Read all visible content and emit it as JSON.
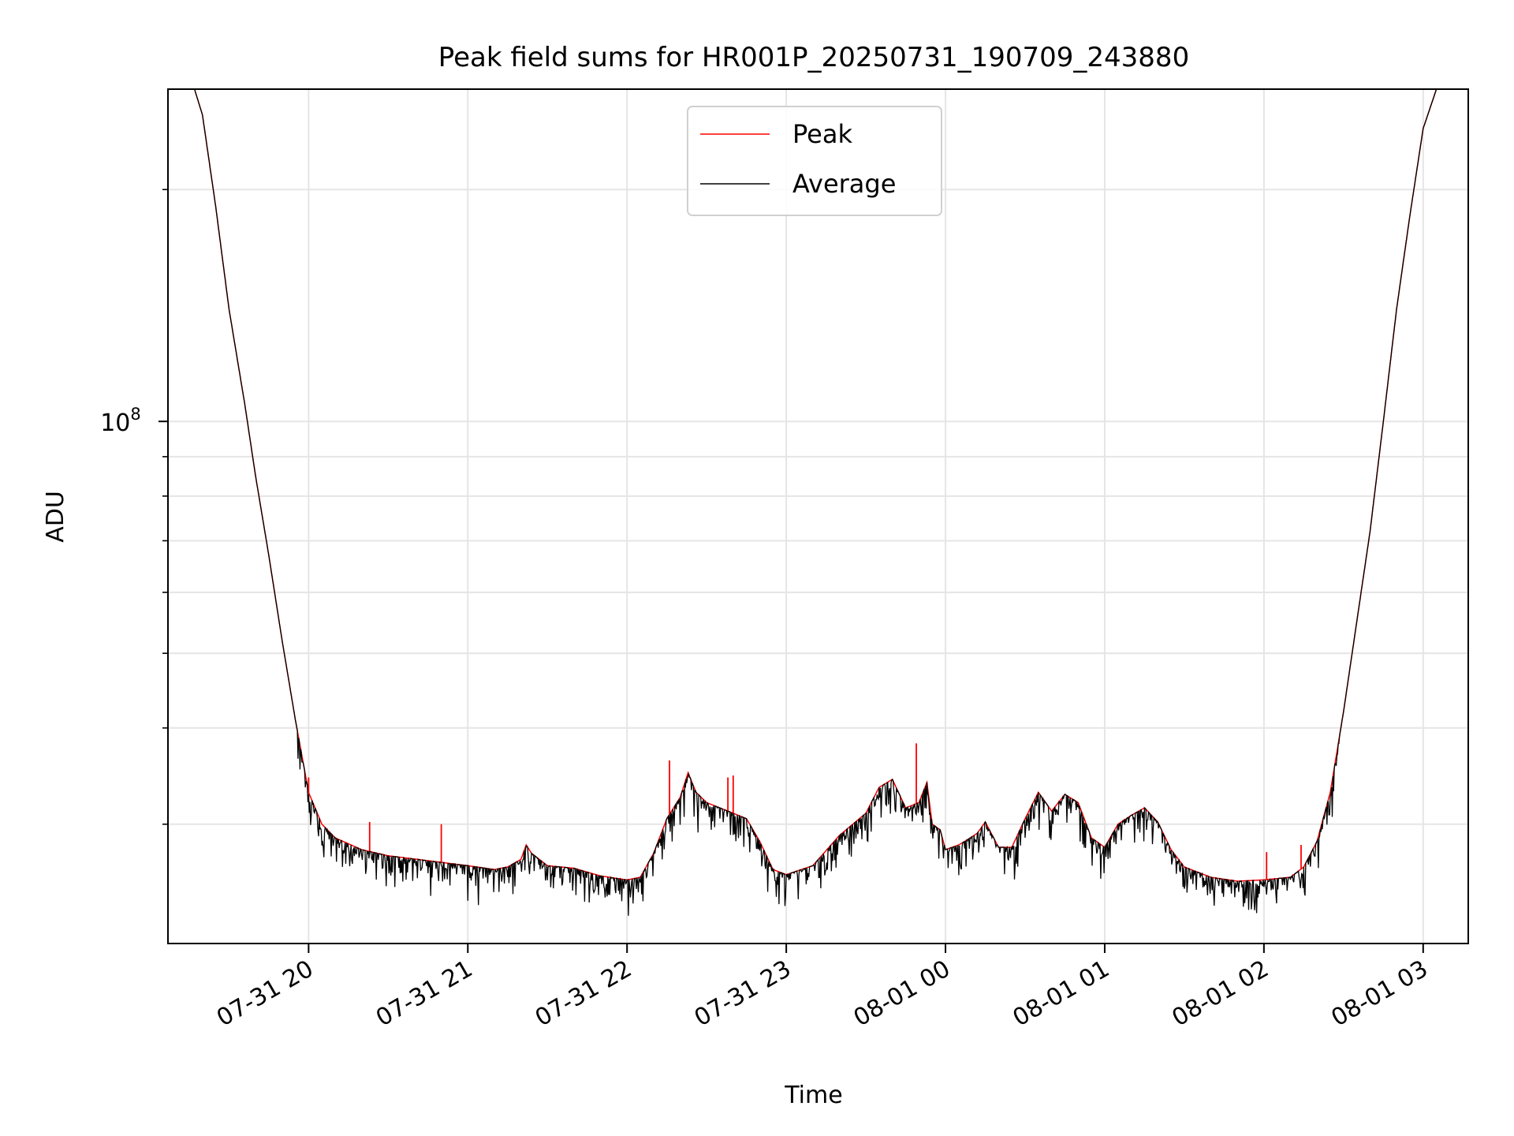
{
  "chart_data": {
    "type": "line",
    "title": "Peak field sums for HR001P_20250731_190709_243880",
    "xlabel": "Time",
    "ylabel": "ADU",
    "y_scale": "log",
    "ylim": [
      21000000,
      270000000
    ],
    "xlim": [
      "2025-07-31 19:07",
      "2025-08-01 03:17"
    ],
    "grid": {
      "x": true,
      "y_major": true,
      "y_minor": true
    },
    "legend": {
      "position": "upper center",
      "entries": [
        "Peak",
        "Average"
      ]
    },
    "x_ticks": [
      {
        "t": "2025-07-31 20:00",
        "label": "07-31 20"
      },
      {
        "t": "2025-07-31 21:00",
        "label": "07-31 21"
      },
      {
        "t": "2025-07-31 22:00",
        "label": "07-31 22"
      },
      {
        "t": "2025-07-31 23:00",
        "label": "07-31 23"
      },
      {
        "t": "2025-08-01 00:00",
        "label": "08-01 00"
      },
      {
        "t": "2025-08-01 01:00",
        "label": "08-01 01"
      },
      {
        "t": "2025-08-01 02:00",
        "label": "08-01 02"
      },
      {
        "t": "2025-08-01 03:00",
        "label": "08-01 03"
      }
    ],
    "y_major_ticks": [
      {
        "v": 100000000,
        "label_base": "10",
        "label_exp": "8"
      }
    ],
    "y_minor_ticks": [
      30000000,
      40000000,
      50000000,
      60000000,
      70000000,
      80000000,
      90000000,
      200000000
    ],
    "series": [
      {
        "name": "Peak",
        "color": "#ff0000",
        "points": [
          [
            "2025-07-31 19:17",
            270000000
          ],
          [
            "2025-07-31 19:20",
            250000000
          ],
          [
            "2025-07-31 19:25",
            190000000
          ],
          [
            "2025-07-31 19:30",
            140000000
          ],
          [
            "2025-07-31 19:36",
            105000000
          ],
          [
            "2025-07-31 19:40",
            85000000
          ],
          [
            "2025-07-31 19:45",
            67000000
          ],
          [
            "2025-07-31 19:50",
            52000000
          ],
          [
            "2025-07-31 19:55",
            41000000
          ],
          [
            "2025-07-31 20:00",
            33000000
          ],
          [
            "2025-07-31 20:05",
            30000000
          ],
          [
            "2025-07-31 20:10",
            28800000
          ],
          [
            "2025-07-31 20:20",
            27800000
          ],
          [
            "2025-07-31 20:30",
            27300000
          ],
          [
            "2025-07-31 20:45",
            26900000
          ],
          [
            "2025-07-31 21:00",
            26500000
          ],
          [
            "2025-07-31 21:10",
            26200000
          ],
          [
            "2025-07-31 21:15",
            26400000
          ],
          [
            "2025-07-31 21:20",
            27000000
          ],
          [
            "2025-07-31 21:22",
            28200000
          ],
          [
            "2025-07-31 21:24",
            27500000
          ],
          [
            "2025-07-31 21:30",
            26500000
          ],
          [
            "2025-07-31 21:40",
            26300000
          ],
          [
            "2025-07-31 21:50",
            25700000
          ],
          [
            "2025-07-31 22:00",
            25400000
          ],
          [
            "2025-07-31 22:05",
            25600000
          ],
          [
            "2025-07-31 22:10",
            27500000
          ],
          [
            "2025-07-31 22:15",
            30500000
          ],
          [
            "2025-07-31 22:20",
            32500000
          ],
          [
            "2025-07-31 22:23",
            35000000
          ],
          [
            "2025-07-31 22:26",
            33000000
          ],
          [
            "2025-07-31 22:30",
            32000000
          ],
          [
            "2025-07-31 22:40",
            31000000
          ],
          [
            "2025-07-31 22:45",
            30500000
          ],
          [
            "2025-07-31 22:50",
            28500000
          ],
          [
            "2025-07-31 22:55",
            26200000
          ],
          [
            "2025-07-31 23:00",
            25800000
          ],
          [
            "2025-07-31 23:10",
            26500000
          ],
          [
            "2025-07-31 23:20",
            29000000
          ],
          [
            "2025-07-31 23:30",
            31000000
          ],
          [
            "2025-07-31 23:35",
            33500000
          ],
          [
            "2025-07-31 23:40",
            34300000
          ],
          [
            "2025-07-31 23:45",
            31500000
          ],
          [
            "2025-07-31 23:50",
            32000000
          ],
          [
            "2025-07-31 23:53",
            34000000
          ],
          [
            "2025-07-31 23:55",
            30000000
          ],
          [
            "2025-07-31 23:58",
            29500000
          ],
          [
            "2025-08-01 00:00",
            27800000
          ],
          [
            "2025-08-01 00:05",
            28200000
          ],
          [
            "2025-08-01 00:08",
            28600000
          ],
          [
            "2025-08-01 00:12",
            29200000
          ],
          [
            "2025-08-01 00:15",
            30200000
          ],
          [
            "2025-08-01 00:20",
            28000000
          ],
          [
            "2025-08-01 00:25",
            28000000
          ],
          [
            "2025-08-01 00:30",
            30500000
          ],
          [
            "2025-08-01 00:35",
            33000000
          ],
          [
            "2025-08-01 00:40",
            31200000
          ],
          [
            "2025-08-01 00:45",
            32800000
          ],
          [
            "2025-08-01 00:50",
            32000000
          ],
          [
            "2025-08-01 00:55",
            28800000
          ],
          [
            "2025-08-01 01:00",
            28000000
          ],
          [
            "2025-08-01 01:05",
            30000000
          ],
          [
            "2025-08-01 01:10",
            30800000
          ],
          [
            "2025-08-01 01:15",
            31500000
          ],
          [
            "2025-08-01 01:20",
            30200000
          ],
          [
            "2025-08-01 01:25",
            27800000
          ],
          [
            "2025-08-01 01:30",
            26400000
          ],
          [
            "2025-08-01 01:40",
            25600000
          ],
          [
            "2025-08-01 01:50",
            25300000
          ],
          [
            "2025-08-01 02:00",
            25400000
          ],
          [
            "2025-08-01 02:10",
            25600000
          ],
          [
            "2025-08-01 02:15",
            26400000
          ],
          [
            "2025-08-01 02:20",
            28500000
          ],
          [
            "2025-08-01 02:25",
            33000000
          ],
          [
            "2025-08-01 02:30",
            42000000
          ],
          [
            "2025-08-01 02:35",
            55000000
          ],
          [
            "2025-08-01 02:40",
            72000000
          ],
          [
            "2025-08-01 02:45",
            100000000
          ],
          [
            "2025-08-01 02:50",
            140000000
          ],
          [
            "2025-08-01 02:55",
            185000000
          ],
          [
            "2025-08-01 03:00",
            240000000
          ],
          [
            "2025-08-01 03:05",
            270000000
          ]
        ],
        "spikes": [
          [
            "2025-07-31 20:00",
            34500000
          ],
          [
            "2025-07-31 20:23",
            30200000
          ],
          [
            "2025-07-31 20:50",
            30000000
          ],
          [
            "2025-07-31 22:16",
            36300000
          ],
          [
            "2025-07-31 22:38",
            34500000
          ],
          [
            "2025-07-31 22:40",
            34700000
          ],
          [
            "2025-07-31 23:49",
            38200000
          ],
          [
            "2025-08-01 02:01",
            27600000
          ],
          [
            "2025-08-01 02:14",
            28200000
          ]
        ]
      },
      {
        "name": "Average",
        "color": "#000000",
        "noise_floor": 0.07
      }
    ]
  }
}
